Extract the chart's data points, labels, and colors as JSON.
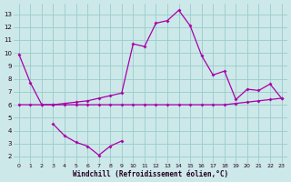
{
  "xlabel": "Windchill (Refroidissement éolien,°C)",
  "x": [
    0,
    1,
    2,
    3,
    4,
    5,
    6,
    7,
    8,
    9,
    10,
    11,
    12,
    13,
    14,
    15,
    16,
    17,
    18,
    19,
    20,
    21,
    22,
    23
  ],
  "line_main": [
    9.9,
    7.7,
    6.0,
    6.0,
    6.1,
    6.2,
    6.3,
    6.5,
    6.7,
    6.9,
    10.7,
    10.5,
    12.3,
    12.5,
    13.3,
    12.1,
    9.8,
    8.3,
    8.6,
    6.4,
    7.2,
    7.1,
    7.6,
    6.5
  ],
  "line_flat": [
    6.0,
    6.0,
    6.0,
    6.0,
    6.0,
    6.0,
    6.0,
    6.0,
    6.0,
    6.0,
    6.0,
    6.0,
    6.0,
    6.0,
    6.0,
    6.0,
    6.0,
    6.0,
    6.0,
    6.1,
    6.2,
    6.3,
    6.4,
    6.5
  ],
  "line_low": [
    null,
    null,
    null,
    4.5,
    3.6,
    3.1,
    2.8,
    2.1,
    2.8,
    3.2,
    null,
    null,
    null,
    null,
    null,
    null,
    null,
    null,
    null,
    null,
    null,
    null,
    null,
    null
  ],
  "ylim": [
    1.5,
    13.8
  ],
  "yticks": [
    2,
    3,
    4,
    5,
    6,
    7,
    8,
    9,
    10,
    11,
    12,
    13
  ],
  "bg_color": "#cce8e8",
  "grid_color": "#99cccc",
  "line_color": "#aa00aa",
  "markersize": 2.0
}
